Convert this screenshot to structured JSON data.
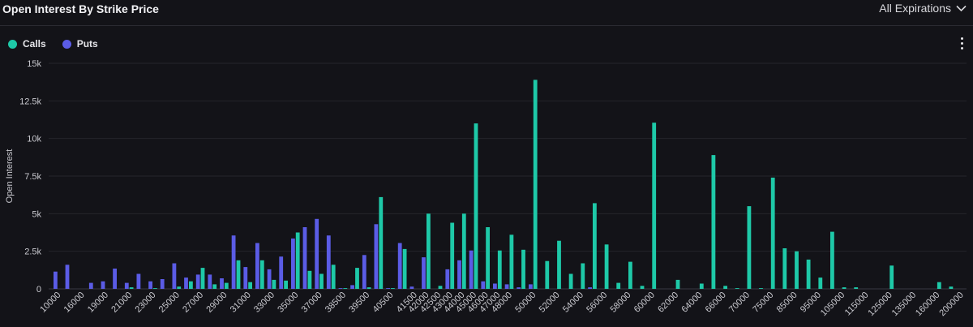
{
  "header": {
    "title": "Open Interest By Strike Price",
    "expiry_label": "All Expirations"
  },
  "legend": {
    "calls_label": "Calls",
    "puts_label": "Puts"
  },
  "colors": {
    "calls": "#1ec9a8",
    "puts": "#5b5ce6",
    "background": "#131318"
  },
  "chart_data": {
    "type": "bar",
    "title": "Open Interest By Strike Price",
    "ylabel": "Open Interest",
    "xlabel": "",
    "ylim": [
      0,
      15000
    ],
    "y_ticks": [
      "0",
      "2.5k",
      "5k",
      "7.5k",
      "10k",
      "12.5k",
      "15k"
    ],
    "grid": true,
    "legend_position": "top-left",
    "categories": [
      "10000",
      "15000",
      "16000",
      "18000",
      "19000",
      "20000",
      "21000",
      "22000",
      "23000",
      "24000",
      "25000",
      "26000",
      "27000",
      "28000",
      "29000",
      "30000",
      "31000",
      "32000",
      "33000",
      "34000",
      "35000",
      "36000",
      "37000",
      "38000",
      "38500",
      "39000",
      "39500",
      "40000",
      "40500",
      "41000",
      "41500",
      "42000",
      "42500",
      "43000",
      "44000",
      "45000",
      "46000",
      "47000",
      "48000",
      "49000",
      "50000",
      "51000",
      "52000",
      "53000",
      "54000",
      "55000",
      "56000",
      "57000",
      "58000",
      "59000",
      "60000",
      "61000",
      "62000",
      "63000",
      "64000",
      "65000",
      "66000",
      "68000",
      "70000",
      "72000",
      "75000",
      "80000",
      "85000",
      "90000",
      "95000",
      "100000",
      "105000",
      "110000",
      "115000",
      "120000",
      "125000",
      "130000",
      "135000",
      "140000",
      "160000",
      "180000",
      "200000"
    ],
    "x_tick_labels": [
      "10000",
      "16000",
      "19000",
      "21000",
      "23000",
      "25000",
      "27000",
      "29000",
      "31000",
      "33000",
      "35000",
      "37000",
      "38500",
      "39500",
      "40500",
      "41500",
      "42000",
      "42500",
      "43000",
      "44000",
      "45000",
      "46000",
      "47000",
      "48000",
      "50000",
      "52000",
      "54000",
      "56000",
      "58000",
      "60000",
      "62000",
      "64000",
      "66000",
      "70000",
      "75000",
      "85000",
      "95000",
      "105000",
      "115000",
      "125000",
      "135000",
      "160000",
      "200000"
    ],
    "series": [
      {
        "name": "Calls",
        "values": [
          0,
          0,
          0,
          0,
          0,
          0,
          100,
          0,
          50,
          0,
          150,
          500,
          1400,
          300,
          400,
          1900,
          450,
          1900,
          600,
          550,
          3750,
          1200,
          1000,
          1600,
          50,
          1400,
          100,
          6100,
          50,
          2650,
          0,
          5000,
          200,
          4400,
          5000,
          11000,
          4100,
          2550,
          3600,
          2600,
          13900,
          1850,
          3200,
          1000,
          1700,
          5700,
          2950,
          400,
          1800,
          200,
          11050,
          0,
          600,
          0,
          350,
          8900,
          200,
          50,
          5500,
          50,
          7400,
          2700,
          2500,
          1950,
          750,
          3800,
          100,
          100,
          0,
          0,
          1550,
          0,
          0,
          0,
          450,
          150,
          0
        ]
      },
      {
        "name": "Puts",
        "values": [
          1150,
          1600,
          0,
          400,
          500,
          1350,
          400,
          1000,
          500,
          650,
          1700,
          750,
          950,
          950,
          700,
          3550,
          1450,
          3050,
          1300,
          2150,
          3350,
          4100,
          4650,
          3550,
          50,
          250,
          2250,
          4300,
          50,
          3050,
          150,
          2100,
          0,
          1300,
          1900,
          2550,
          500,
          350,
          300,
          100,
          300,
          0,
          0,
          0,
          0,
          100,
          0,
          0,
          0,
          0,
          0,
          0,
          0,
          0,
          0,
          0,
          0,
          0,
          0,
          0,
          0,
          0,
          0,
          0,
          0,
          0,
          0,
          0,
          0,
          0,
          0,
          0,
          0,
          0,
          0,
          0,
          0
        ]
      }
    ]
  }
}
